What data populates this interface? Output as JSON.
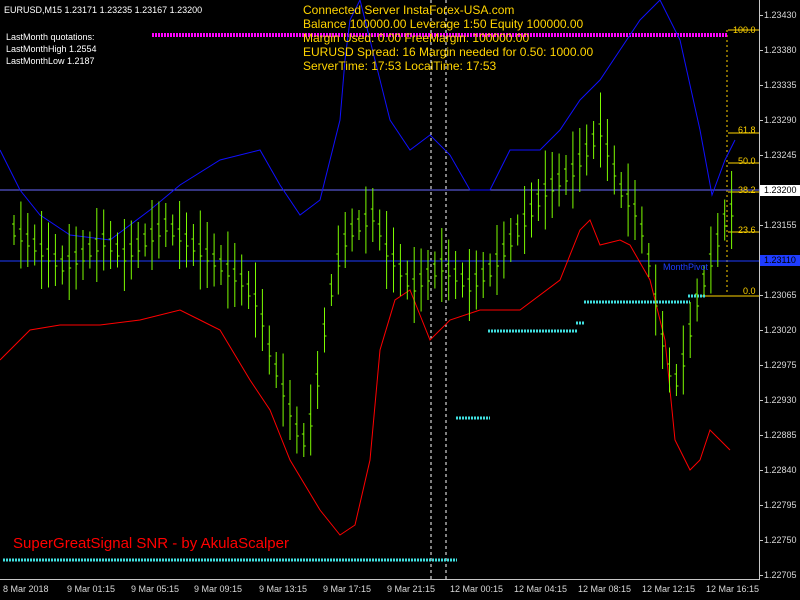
{
  "symbol": "EURUSD,M15",
  "ohlc": "1.23171 1.23235 1.23167 1.23200",
  "info": {
    "line1": "Connected Server InstaForex-USA.com",
    "line2": "Balance 100000.00 Leverage 1:50 Equity 100000.00",
    "line3": "Margin Used: 0.00 FreeMargin: 100000.00",
    "line4": "EURUSD Spread: 16 Margin needed for 0.50: 1000.00",
    "line5": "ServerTime: 17:53 LocalTime: 17:53"
  },
  "last_month": {
    "title": "LastMonth quotations:",
    "high": "LastMonthHigh 1.2554",
    "low": "LastMonthLow 1.2187"
  },
  "watermark": "SuperGreatSignal SNR - by AkulaScalper",
  "fib_levels": [
    "100.0",
    "61.8",
    "50.0",
    "38.2",
    "23.6",
    "0.0"
  ],
  "pivot_label": "MonthPivot",
  "current_price": "1.23200",
  "pivot_price": "1.23110",
  "y_ticks": [
    "1.23430",
    "1.23380",
    "1.23335",
    "1.23290",
    "1.23245",
    "1.23200",
    "1.23155",
    "1.23110",
    "1.23065",
    "1.23020",
    "1.22975",
    "1.22930",
    "1.22885",
    "1.22840",
    "1.22795",
    "1.22750",
    "1.22705"
  ],
  "x_ticks": [
    "8 Mar 2018",
    "9 Mar 01:15",
    "9 Mar 05:15",
    "9 Mar 09:15",
    "9 Mar 13:15",
    "9 Mar 17:15",
    "9 Mar 21:15",
    "12 Mar 00:15",
    "12 Mar 04:15",
    "12 Mar 08:15",
    "12 Mar 12:15",
    "12 Mar 16:15"
  ],
  "colors": {
    "background": "#000000",
    "bars": "#7CFC00",
    "upper_band": "#1010ff",
    "lower_band": "#ff0000",
    "resistance_line": "#ff00ff",
    "support_zones": "#40e0e0",
    "info_text": "#ffd400",
    "pivot_line": "#1e3cff"
  }
}
